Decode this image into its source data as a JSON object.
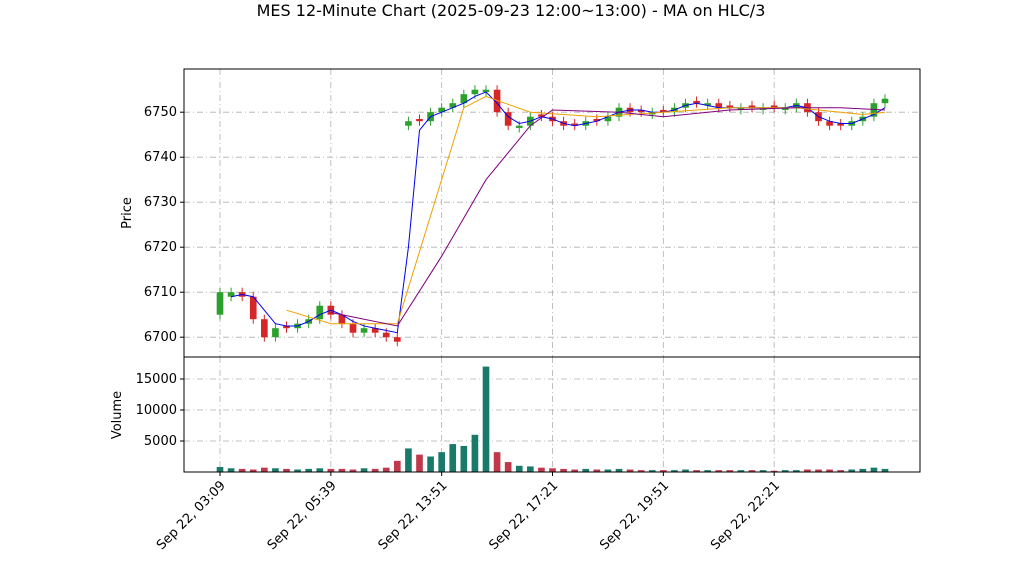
{
  "chart_data": {
    "type": "candlestick",
    "title": "MES 12-Minute Chart (2025-09-23 12:00~13:00) - MA on HLC/3",
    "ylabel": "Price",
    "volume_ylabel": "Volume",
    "categories": [
      "Sep 22, 03:09",
      null,
      null,
      null,
      null,
      null,
      null,
      null,
      null,
      null,
      "Sep 22, 05:39",
      null,
      null,
      null,
      null,
      null,
      null,
      null,
      null,
      null,
      "Sep 22, 13:51",
      null,
      null,
      null,
      null,
      null,
      null,
      null,
      null,
      null,
      "Sep 22, 17:21",
      null,
      null,
      null,
      null,
      null,
      null,
      null,
      null,
      null,
      "Sep 22, 19:51",
      null,
      null,
      null,
      null,
      null,
      null,
      null,
      null,
      null,
      "Sep 22, 22:21",
      null,
      null,
      null,
      null,
      null,
      null,
      null,
      null,
      null,
      null
    ],
    "open": [
      6705,
      6709,
      6710,
      6709,
      6704,
      6700,
      6702.5,
      6702,
      6703,
      6704,
      6707,
      6705,
      6703,
      6701,
      6702,
      6701,
      6700,
      6747,
      6748.5,
      6748,
      6750,
      6751,
      6752,
      6754,
      6754.5,
      6755,
      6750,
      6746.5,
      6747,
      6749.5,
      6749,
      6748,
      6747.5,
      6747,
      6748.5,
      6748,
      6749,
      6751,
      6750.5,
      6749.5,
      6750.5,
      6750,
      6751,
      6752.5,
      6751.5,
      6752,
      6751.5,
      6750.5,
      6751.5,
      6750.5,
      6751.5,
      6750.5,
      6751,
      6752,
      6750,
      6748,
      6747.5,
      6747,
      6748,
      6749,
      6752
    ],
    "high": [
      6711,
      6711,
      6711,
      6710,
      6705,
      6703,
      6703.5,
      6704,
      6705,
      6708,
      6708,
      6706,
      6704,
      6703,
      6703,
      6702,
      6701,
      6749,
      6749.5,
      6751,
      6752,
      6753,
      6755,
      6756,
      6756,
      6756,
      6751,
      6748,
      6750,
      6750.5,
      6750,
      6749,
      6748.5,
      6749,
      6749.5,
      6750,
      6752,
      6752,
      6751.5,
      6751,
      6751.5,
      6752,
      6753,
      6753.5,
      6753,
      6753,
      6752.5,
      6752,
      6752.5,
      6752,
      6752.5,
      6752,
      6753,
      6753,
      6751,
      6749,
      6748.5,
      6749,
      6750,
      6753,
      6754
    ],
    "low": [
      6704,
      6708,
      6708,
      6703,
      6699,
      6699,
      6701,
      6701,
      6702,
      6703,
      6704,
      6702,
      6700,
      6700,
      6700,
      6699,
      6698,
      6746,
      6747,
      6747,
      6749,
      6750,
      6751,
      6753,
      6753.5,
      6749,
      6746,
      6745.5,
      6746,
      6748,
      6747,
      6746,
      6746,
      6746,
      6747,
      6747,
      6748,
      6749,
      6749,
      6748.5,
      6749,
      6749,
      6750,
      6751,
      6750.5,
      6750,
      6750,
      6749.5,
      6750,
      6749.5,
      6750,
      6749.5,
      6750,
      6749,
      6747,
      6746,
      6746,
      6746,
      6747,
      6748,
      6751
    ],
    "close": [
      6710,
      6710,
      6709,
      6704,
      6700,
      6702,
      6702,
      6703,
      6704,
      6707,
      6705,
      6703,
      6701,
      6702,
      6701,
      6700,
      6699,
      6748,
      6748,
      6750,
      6751,
      6752,
      6754,
      6755,
      6755,
      6750,
      6747,
      6747,
      6749,
      6749,
      6748,
      6747,
      6747,
      6748,
      6748,
      6749,
      6751,
      6750,
      6750,
      6750,
      6750,
      6751,
      6752,
      6752,
      6752,
      6751,
      6751,
      6751,
      6751,
      6751,
      6751,
      6751,
      6752,
      6750,
      6748,
      6747,
      6747,
      6748,
      6749,
      6752,
      6753
    ],
    "volume": [
      800,
      600,
      500,
      400,
      700,
      600,
      500,
      400,
      500,
      600,
      500,
      500,
      400,
      600,
      500,
      700,
      1800,
      3800,
      2800,
      2500,
      3200,
      4500,
      4200,
      6000,
      17000,
      3200,
      1600,
      1000,
      900,
      700,
      600,
      500,
      400,
      500,
      400,
      400,
      500,
      400,
      300,
      300,
      300,
      300,
      400,
      300,
      300,
      300,
      300,
      300,
      300,
      300,
      200,
      300,
      300,
      400,
      400,
      400,
      300,
      400,
      500,
      700,
      500
    ],
    "up_color": "#2ca02c",
    "down_color": "#d62728",
    "volume_up_color": "#1a7a6a",
    "volume_down_color": "#c0384b",
    "lines": [
      {
        "color": "#0000ee",
        "x": [
          1,
          2,
          3,
          4,
          5,
          6,
          7,
          8,
          9,
          10,
          11,
          12,
          13,
          14,
          15,
          16,
          17,
          18,
          19,
          20,
          21,
          22,
          23,
          24,
          25,
          26,
          27,
          28,
          29,
          30,
          31,
          32,
          33,
          34,
          35,
          36,
          37,
          38,
          39,
          40,
          41,
          42,
          43,
          44,
          45,
          46,
          47,
          48,
          49,
          50,
          51,
          52,
          53,
          54,
          55,
          56,
          57,
          58,
          59,
          60
        ],
        "values": [
          6709,
          6709.5,
          6709,
          6706,
          6703,
          6702.5,
          6702.5,
          6703.5,
          6705,
          6706,
          6705,
          6703.5,
          6702.5,
          6702,
          6701.5,
          6701,
          6720,
          6746,
          6749,
          6750,
          6751,
          6752,
          6753.5,
          6754.5,
          6752,
          6749,
          6747.5,
          6748,
          6749,
          6748.5,
          6747.5,
          6747,
          6747.5,
          6748,
          6749,
          6750,
          6750.5,
          6750.5,
          6750,
          6750,
          6750.5,
          6751.5,
          6752,
          6751.5,
          6751,
          6751,
          6751,
          6751,
          6751,
          6751,
          6751,
          6751.5,
          6751,
          6749,
          6748,
          6747.5,
          6747.5,
          6748.5,
          6749.5,
          6751
        ]
      },
      {
        "color": "#f0a000",
        "x": [
          6,
          10,
          16,
          22,
          24,
          28,
          34,
          40,
          46,
          52,
          58,
          60
        ],
        "values": [
          6706,
          6703,
          6703,
          6751,
          6753.5,
          6750,
          6749,
          6750,
          6751,
          6751,
          6749.5,
          6750
        ]
      },
      {
        "color": "#800080",
        "x": [
          10,
          16,
          20,
          24,
          28,
          30,
          36,
          40,
          46,
          52,
          56,
          60
        ],
        "values": [
          6705.5,
          6702.5,
          6718,
          6735,
          6747,
          6750.5,
          6750,
          6749,
          6750.5,
          6751,
          6751,
          6750.5
        ]
      }
    ],
    "ylim": [
      6695.6,
      6759.6
    ],
    "yticks": [
      6700,
      6710,
      6720,
      6730,
      6740,
      6750
    ],
    "volume_ylim": [
      0,
      18550
    ],
    "volume_yticks": [
      5000,
      10000,
      15000
    ],
    "grid": true
  }
}
